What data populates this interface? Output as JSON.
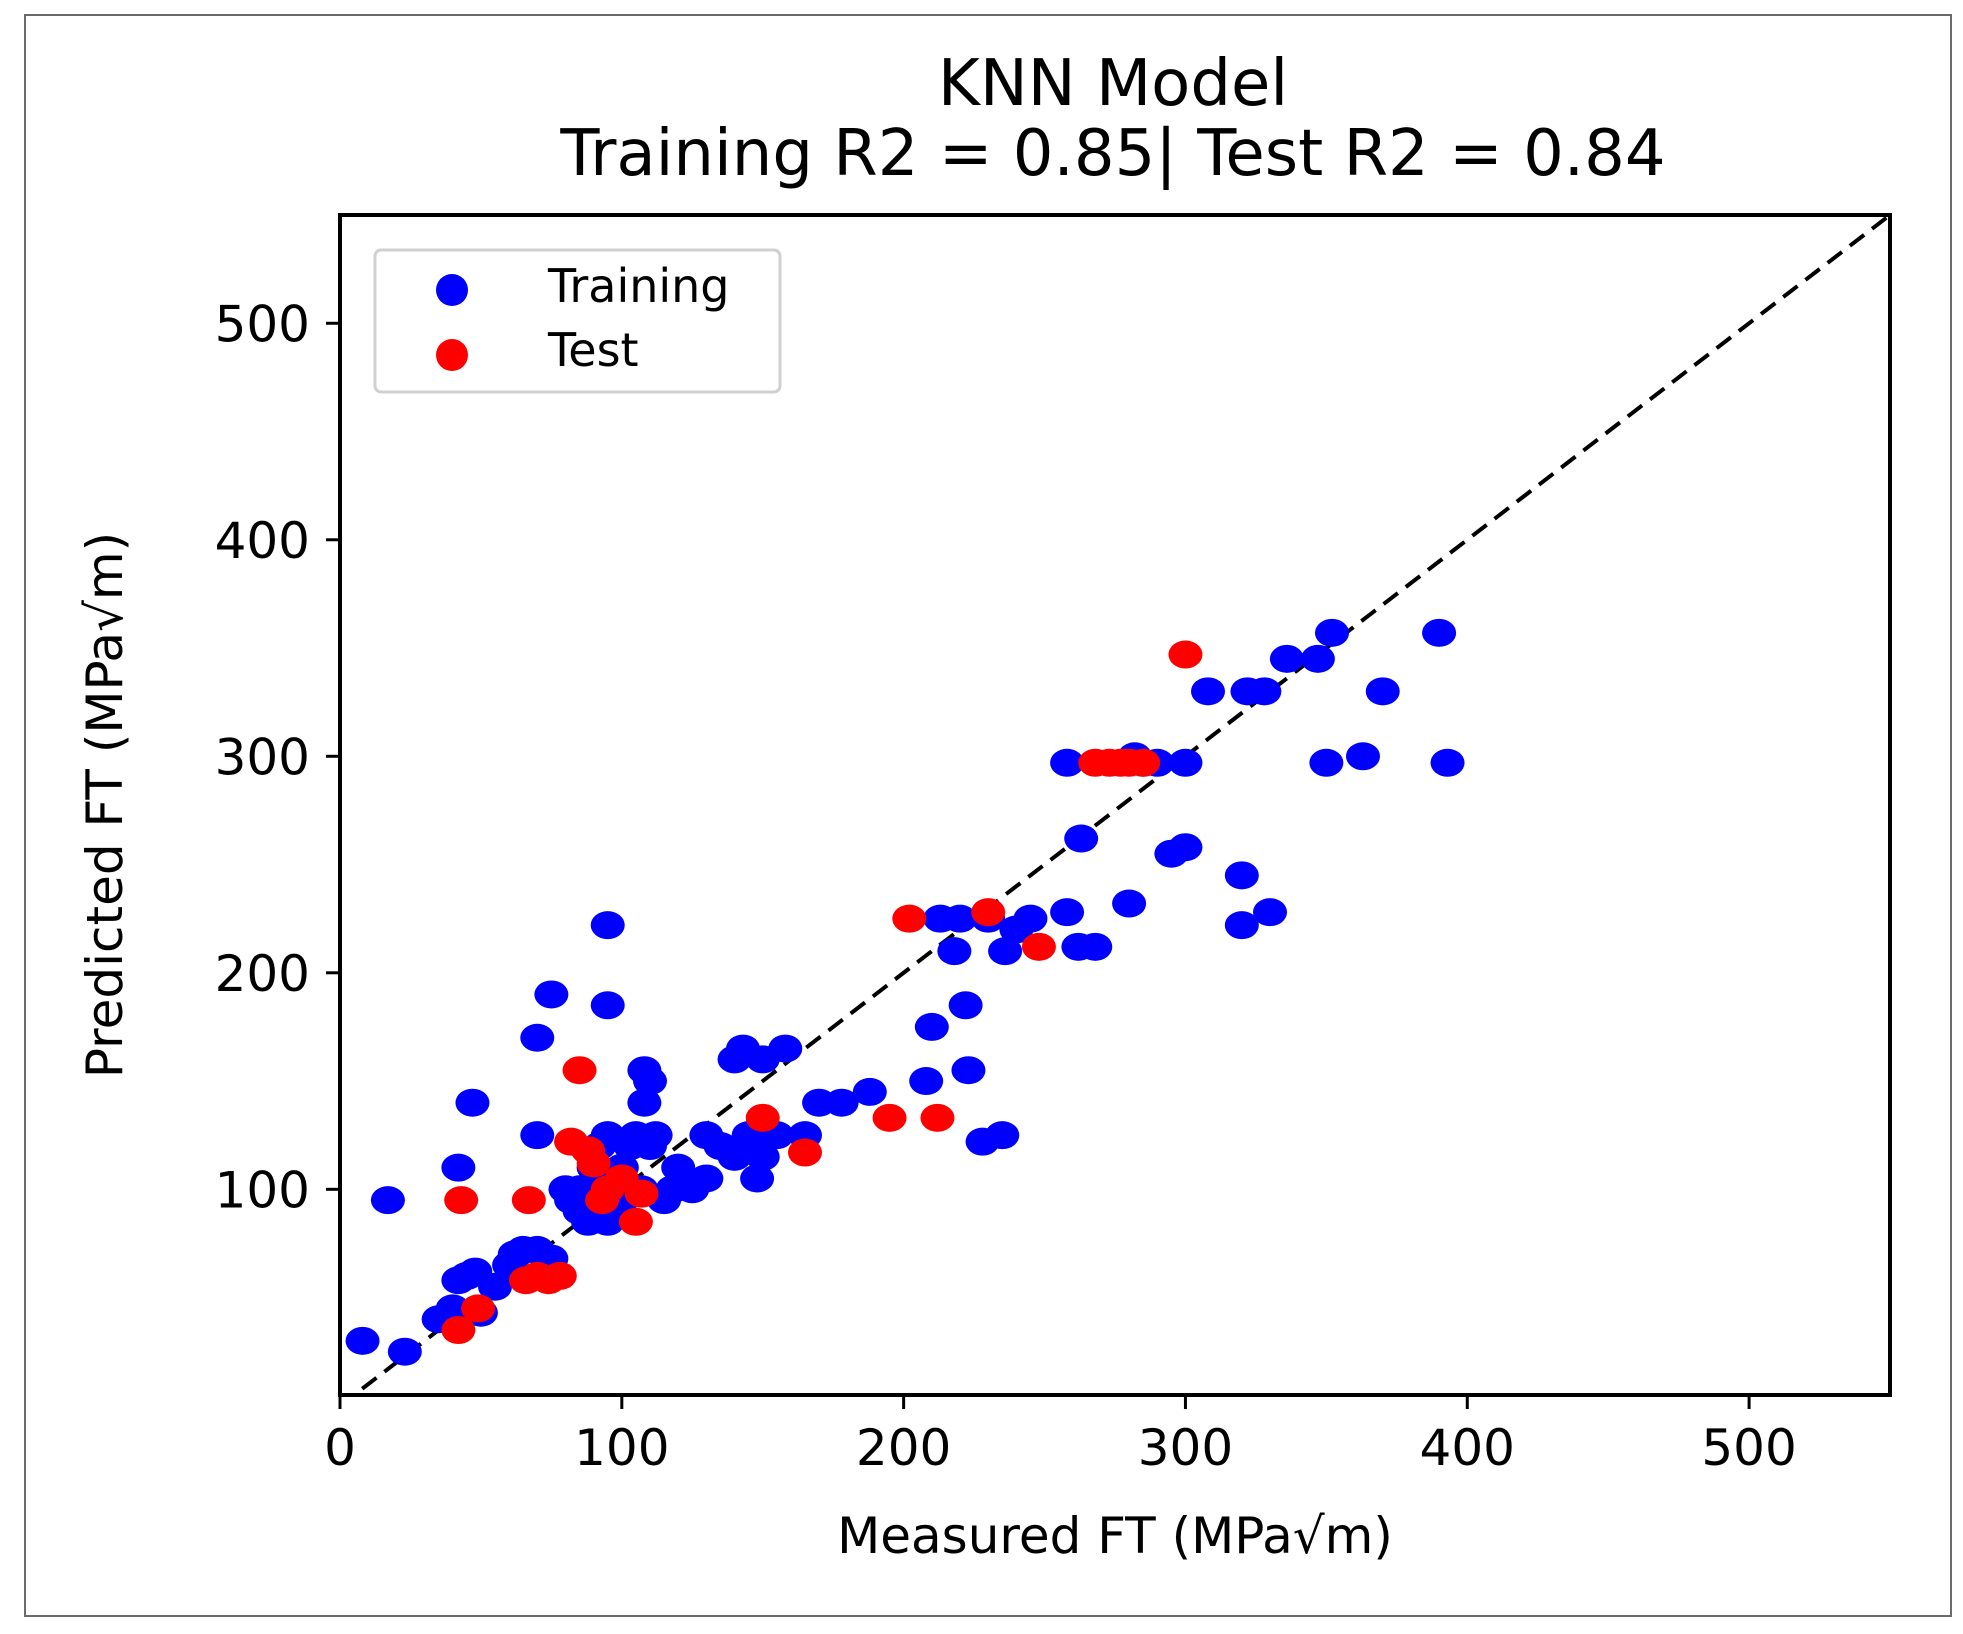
{
  "chart_data": {
    "type": "scatter",
    "title": "KNN Model",
    "subtitle": "Training R2 = 0.85| Test R2 = 0.84",
    "xlabel": "Measured FT (MPa√m)",
    "ylabel": "Predicted FT (MPa√m)",
    "xlim": [
      0,
      550
    ],
    "ylim": [
      5,
      550
    ],
    "xticks": [
      0,
      100,
      200,
      300,
      400,
      500
    ],
    "yticks": [
      100,
      200,
      300,
      400,
      500
    ],
    "grid": false,
    "legend_position": "top-left",
    "reference_line": {
      "style": "dashed",
      "color": "#000000",
      "from": [
        0,
        0
      ],
      "to": [
        550,
        550
      ]
    },
    "series": [
      {
        "name": "Training",
        "color": "#0000ff",
        "points": [
          [
            8,
            30
          ],
          [
            17,
            95
          ],
          [
            23,
            25
          ],
          [
            35,
            40
          ],
          [
            40,
            45
          ],
          [
            42,
            58
          ],
          [
            45,
            60
          ],
          [
            48,
            62
          ],
          [
            50,
            43
          ],
          [
            55,
            55
          ],
          [
            60,
            65
          ],
          [
            62,
            70
          ],
          [
            65,
            72
          ],
          [
            70,
            72
          ],
          [
            75,
            68
          ],
          [
            42,
            110
          ],
          [
            47,
            140
          ],
          [
            70,
            125
          ],
          [
            70,
            170
          ],
          [
            75,
            190
          ],
          [
            80,
            100
          ],
          [
            82,
            95
          ],
          [
            85,
            100
          ],
          [
            85,
            90
          ],
          [
            88,
            85
          ],
          [
            90,
            110
          ],
          [
            92,
            120
          ],
          [
            95,
            85
          ],
          [
            95,
            125
          ],
          [
            97,
            100
          ],
          [
            100,
            95
          ],
          [
            100,
            110
          ],
          [
            103,
            120
          ],
          [
            105,
            125
          ],
          [
            107,
            100
          ],
          [
            108,
            140
          ],
          [
            110,
            120
          ],
          [
            112,
            125
          ],
          [
            115,
            95
          ],
          [
            118,
            100
          ],
          [
            120,
            110
          ],
          [
            125,
            100
          ],
          [
            130,
            105
          ],
          [
            130,
            125
          ],
          [
            135,
            120
          ],
          [
            140,
            115
          ],
          [
            140,
            160
          ],
          [
            143,
            165
          ],
          [
            145,
            125
          ],
          [
            148,
            105
          ],
          [
            150,
            115
          ],
          [
            150,
            160
          ],
          [
            155,
            125
          ],
          [
            158,
            165
          ],
          [
            165,
            125
          ],
          [
            170,
            140
          ],
          [
            178,
            140
          ],
          [
            188,
            145
          ],
          [
            95,
            222
          ],
          [
            95,
            185
          ],
          [
            108,
            155
          ],
          [
            110,
            150
          ],
          [
            208,
            150
          ],
          [
            210,
            175
          ],
          [
            213,
            225
          ],
          [
            218,
            210
          ],
          [
            220,
            225
          ],
          [
            222,
            185
          ],
          [
            223,
            155
          ],
          [
            228,
            122
          ],
          [
            230,
            225
          ],
          [
            235,
            125
          ],
          [
            236,
            210
          ],
          [
            240,
            220
          ],
          [
            245,
            225
          ],
          [
            258,
            228
          ],
          [
            258,
            297
          ],
          [
            262,
            212
          ],
          [
            263,
            262
          ],
          [
            268,
            212
          ],
          [
            280,
            232
          ],
          [
            282,
            300
          ],
          [
            285,
            297
          ],
          [
            290,
            297
          ],
          [
            295,
            255
          ],
          [
            300,
            258
          ],
          [
            300,
            297
          ],
          [
            308,
            330
          ],
          [
            320,
            245
          ],
          [
            320,
            222
          ],
          [
            322,
            330
          ],
          [
            328,
            330
          ],
          [
            330,
            228
          ],
          [
            336,
            345
          ],
          [
            347,
            345
          ],
          [
            350,
            297
          ],
          [
            352,
            357
          ],
          [
            363,
            300
          ],
          [
            370,
            330
          ],
          [
            390,
            357
          ],
          [
            393,
            297
          ]
        ]
      },
      {
        "name": "Test",
        "color": "#ff0000",
        "points": [
          [
            42,
            35
          ],
          [
            43,
            95
          ],
          [
            49,
            45
          ],
          [
            66,
            58
          ],
          [
            67,
            95
          ],
          [
            70,
            60
          ],
          [
            74,
            58
          ],
          [
            78,
            60
          ],
          [
            82,
            122
          ],
          [
            85,
            155
          ],
          [
            88,
            118
          ],
          [
            90,
            112
          ],
          [
            93,
            95
          ],
          [
            95,
            100
          ],
          [
            100,
            105
          ],
          [
            105,
            85
          ],
          [
            107,
            98
          ],
          [
            150,
            133
          ],
          [
            165,
            117
          ],
          [
            195,
            133
          ],
          [
            202,
            225
          ],
          [
            212,
            133
          ],
          [
            230,
            228
          ],
          [
            248,
            212
          ],
          [
            268,
            297
          ],
          [
            273,
            297
          ],
          [
            277,
            297
          ],
          [
            280,
            297
          ],
          [
            285,
            297
          ],
          [
            300,
            347
          ]
        ]
      }
    ]
  }
}
